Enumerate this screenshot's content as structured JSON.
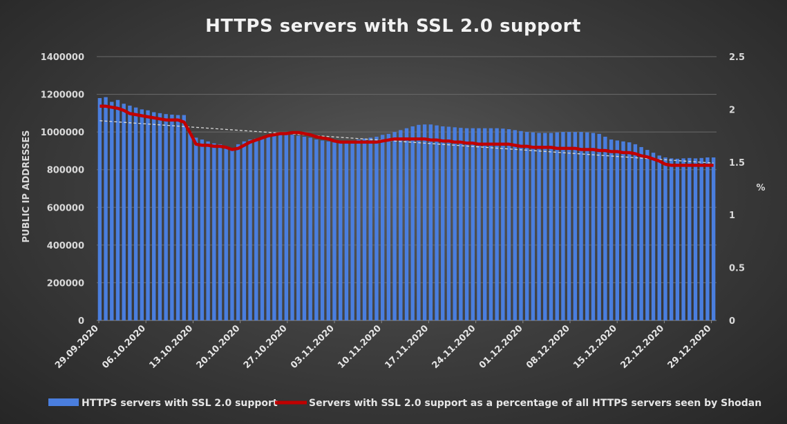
{
  "chart_data": {
    "type": "bar",
    "title": "HTTPS servers with SSL 2.0 support",
    "ylabel": "PUBLIC IP ADDRESSES",
    "y2label": "%",
    "ylim": [
      0,
      1400000
    ],
    "y2lim": [
      0,
      2.5
    ],
    "yticks": [
      "0",
      "200000",
      "400000",
      "600000",
      "800000",
      "1000000",
      "1200000",
      "1400000"
    ],
    "y2ticks": [
      "0",
      "0.5",
      "1",
      "1.5",
      "2",
      "2.5"
    ],
    "x_tick_labels": [
      "29.09.2020",
      "06.10.2020",
      "13.10.2020",
      "20.10.2020",
      "27.10.2020",
      "03.11.2020",
      "10.11.2020",
      "17.11.2020",
      "24.11.2020",
      "01.12.2020",
      "08.12.2020",
      "15.12.2020",
      "22.12.2020",
      "29.12.2020"
    ],
    "legend_position": "bottom",
    "colors": {
      "bars": "#4a7ede",
      "line": "#c00000",
      "trend": "#d9d9d9"
    },
    "series": [
      {
        "name": "HTTPS servers with SSL 2.0 support",
        "type": "bar",
        "axis": "left",
        "values": [
          1180000,
          1185000,
          1160000,
          1170000,
          1150000,
          1140000,
          1130000,
          1120000,
          1115000,
          1105000,
          1100000,
          1095000,
          1092000,
          1090000,
          1090000,
          1000000,
          970000,
          960000,
          950000,
          940000,
          935000,
          920000,
          910000,
          935000,
          950000,
          960000,
          965000,
          970000,
          975000,
          980000,
          985000,
          985000,
          985000,
          980000,
          975000,
          970000,
          960000,
          955000,
          950000,
          945000,
          945000,
          950000,
          955000,
          960000,
          965000,
          970000,
          975000,
          985000,
          990000,
          1000000,
          1010000,
          1020000,
          1030000,
          1038000,
          1040000,
          1040000,
          1035000,
          1030000,
          1028000,
          1025000,
          1022000,
          1020000,
          1020000,
          1020000,
          1020000,
          1020000,
          1020000,
          1018000,
          1015000,
          1010000,
          1005000,
          1000000,
          998000,
          995000,
          995000,
          995000,
          998000,
          1000000,
          1000000,
          1000000,
          1000000,
          998000,
          995000,
          990000,
          975000,
          960000,
          955000,
          950000,
          945000,
          935000,
          920000,
          905000,
          890000,
          875000,
          865000,
          860000,
          858000,
          860000,
          862000,
          860000,
          862000,
          865000,
          865000
        ]
      },
      {
        "name": "Servers with SSL 2.0 support as a percentage of all HTTPS servers seen by Shodan",
        "type": "line",
        "axis": "right",
        "values": [
          2.03,
          2.03,
          2.02,
          2.01,
          1.99,
          1.96,
          1.95,
          1.94,
          1.93,
          1.92,
          1.91,
          1.9,
          1.9,
          1.9,
          1.88,
          1.78,
          1.67,
          1.66,
          1.66,
          1.65,
          1.65,
          1.64,
          1.62,
          1.63,
          1.66,
          1.69,
          1.71,
          1.73,
          1.75,
          1.76,
          1.77,
          1.77,
          1.78,
          1.78,
          1.77,
          1.76,
          1.74,
          1.73,
          1.72,
          1.7,
          1.69,
          1.69,
          1.69,
          1.69,
          1.69,
          1.69,
          1.69,
          1.7,
          1.71,
          1.72,
          1.72,
          1.72,
          1.72,
          1.72,
          1.72,
          1.71,
          1.71,
          1.7,
          1.7,
          1.69,
          1.69,
          1.68,
          1.68,
          1.67,
          1.67,
          1.67,
          1.67,
          1.67,
          1.67,
          1.66,
          1.65,
          1.65,
          1.64,
          1.64,
          1.64,
          1.64,
          1.63,
          1.63,
          1.63,
          1.63,
          1.62,
          1.62,
          1.62,
          1.61,
          1.61,
          1.6,
          1.6,
          1.59,
          1.59,
          1.58,
          1.56,
          1.55,
          1.53,
          1.51,
          1.48,
          1.47,
          1.47,
          1.47,
          1.47,
          1.47,
          1.47,
          1.47,
          1.47
        ]
      },
      {
        "type": "trend",
        "axis": "left",
        "values": [
          1060000,
          835000
        ]
      }
    ]
  }
}
